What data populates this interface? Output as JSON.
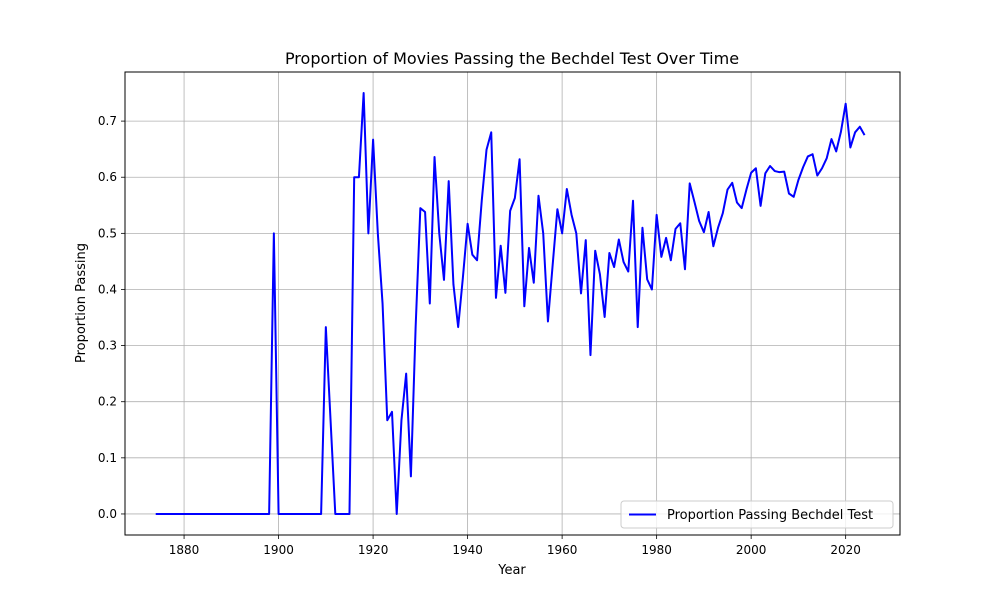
{
  "chart_data": {
    "type": "line",
    "title": "Proportion of Movies Passing the Bechdel Test Over Time",
    "xlabel": "Year",
    "ylabel": "Proportion Passing",
    "xlim": [
      1867.5,
      2031.5
    ],
    "ylim": [
      -0.0375,
      0.7875
    ],
    "xticks": [
      1880,
      1900,
      1920,
      1940,
      1960,
      1980,
      2000,
      2020
    ],
    "yticks": [
      0.0,
      0.1,
      0.2,
      0.3,
      0.4,
      0.5,
      0.6,
      0.7
    ],
    "ytick_labels": [
      "0.0",
      "0.1",
      "0.2",
      "0.3",
      "0.4",
      "0.5",
      "0.6",
      "0.7"
    ],
    "grid": true,
    "legend": "lower right",
    "series": [
      {
        "name": "Proportion Passing Bechdel Test",
        "color": "#0000ff",
        "x": [
          1874,
          1898,
          1899,
          1900,
          1909,
          1910,
          1912,
          1915,
          1916,
          1917,
          1918,
          1919,
          1920,
          1921,
          1922,
          1923,
          1924,
          1925,
          1926,
          1927,
          1928,
          1929,
          1930,
          1931,
          1932,
          1933,
          1934,
          1935,
          1936,
          1937,
          1938,
          1939,
          1940,
          1941,
          1942,
          1943,
          1944,
          1945,
          1946,
          1947,
          1948,
          1949,
          1950,
          1951,
          1952,
          1953,
          1954,
          1955,
          1956,
          1957,
          1958,
          1959,
          1960,
          1961,
          1962,
          1963,
          1964,
          1965,
          1966,
          1967,
          1968,
          1969,
          1970,
          1971,
          1972,
          1973,
          1974,
          1975,
          1976,
          1977,
          1978,
          1979,
          1980,
          1981,
          1982,
          1983,
          1984,
          1985,
          1986,
          1987,
          1988,
          1989,
          1990,
          1991,
          1992,
          1993,
          1994,
          1995,
          1996,
          1997,
          1998,
          1999,
          2000,
          2001,
          2002,
          2003,
          2004,
          2005,
          2006,
          2007,
          2008,
          2009,
          2010,
          2011,
          2012,
          2013,
          2014,
          2015,
          2016,
          2017,
          2018,
          2019,
          2020,
          2021,
          2022,
          2023,
          2024
        ],
        "values": [
          0.0,
          0.0,
          0.5,
          0.0,
          0.0,
          0.333,
          0.0,
          0.0,
          0.6,
          0.6,
          0.75,
          0.5,
          0.667,
          0.5,
          0.375,
          0.167,
          0.182,
          0.0,
          0.167,
          0.25,
          0.067,
          0.333,
          0.545,
          0.538,
          0.375,
          0.636,
          0.5,
          0.417,
          0.593,
          0.409,
          0.333,
          0.421,
          0.517,
          0.462,
          0.452,
          0.559,
          0.649,
          0.68,
          0.385,
          0.478,
          0.394,
          0.54,
          0.563,
          0.632,
          0.37,
          0.474,
          0.412,
          0.567,
          0.5,
          0.343,
          0.444,
          0.543,
          0.5,
          0.579,
          0.533,
          0.5,
          0.393,
          0.488,
          0.283,
          0.469,
          0.427,
          0.351,
          0.465,
          0.44,
          0.489,
          0.449,
          0.432,
          0.558,
          0.333,
          0.51,
          0.418,
          0.4,
          0.533,
          0.458,
          0.492,
          0.452,
          0.508,
          0.518,
          0.436,
          0.589,
          0.556,
          0.522,
          0.502,
          0.538,
          0.477,
          0.51,
          0.536,
          0.578,
          0.59,
          0.555,
          0.545,
          0.578,
          0.608,
          0.616,
          0.549,
          0.607,
          0.62,
          0.611,
          0.609,
          0.61,
          0.571,
          0.565,
          0.595,
          0.618,
          0.637,
          0.641,
          0.603,
          0.616,
          0.634,
          0.668,
          0.646,
          0.681,
          0.731,
          0.653,
          0.68,
          0.69,
          0.675
        ]
      }
    ]
  }
}
